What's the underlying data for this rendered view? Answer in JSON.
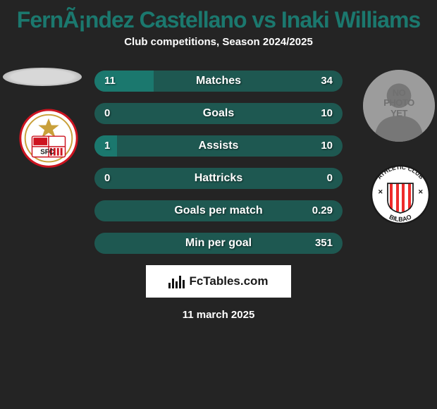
{
  "header": {
    "title": "FernÃ¡ndez Castellano vs Inaki Williams",
    "subtitle": "Club competitions, Season 2024/2025"
  },
  "players": {
    "left": {
      "name": "FernÃ¡ndez Castellano",
      "club": "Sevilla FC",
      "crest_colors": {
        "primary": "#cd1420",
        "secondary": "#ffffff",
        "accent": "#c9a03a"
      },
      "crest_label": "SFC"
    },
    "right": {
      "name": "Inaki Williams",
      "club": "Athletic Club Bilbao",
      "no_photo_text_l1": "NO",
      "no_photo_text_l2": "PHOTO",
      "no_photo_text_l3": "YET",
      "crest_colors": {
        "primary": "#ee2c2c",
        "secondary": "#ffffff",
        "accent": "#1a1a1a"
      },
      "crest_label_top": "ATHLETIC CLUB",
      "crest_label_bot": "BILBAO"
    }
  },
  "stats": {
    "rows": [
      {
        "label": "Matches",
        "left": "11",
        "right": "34",
        "left_pct": 24,
        "right_pct": 0
      },
      {
        "label": "Goals",
        "left": "0",
        "right": "10",
        "left_pct": 0,
        "right_pct": 0
      },
      {
        "label": "Assists",
        "left": "1",
        "right": "10",
        "left_pct": 9,
        "right_pct": 0
      },
      {
        "label": "Hattricks",
        "left": "0",
        "right": "0",
        "left_pct": 0,
        "right_pct": 0
      },
      {
        "label": "Goals per match",
        "left": "",
        "right": "0.29",
        "left_pct": 0,
        "right_pct": 0
      },
      {
        "label": "Min per goal",
        "left": "",
        "right": "351",
        "left_pct": 0,
        "right_pct": 0
      }
    ],
    "bar_bg_color": "#1e5851",
    "bar_fill_color": "#1b786e",
    "label_fontsize": 16,
    "value_fontsize": 15
  },
  "footer": {
    "source_logo_text": "FcTables.com",
    "date": "11 march 2025"
  },
  "theme": {
    "background": "#242424",
    "title_color": "#1b786e",
    "text_color": "#ffffff"
  }
}
